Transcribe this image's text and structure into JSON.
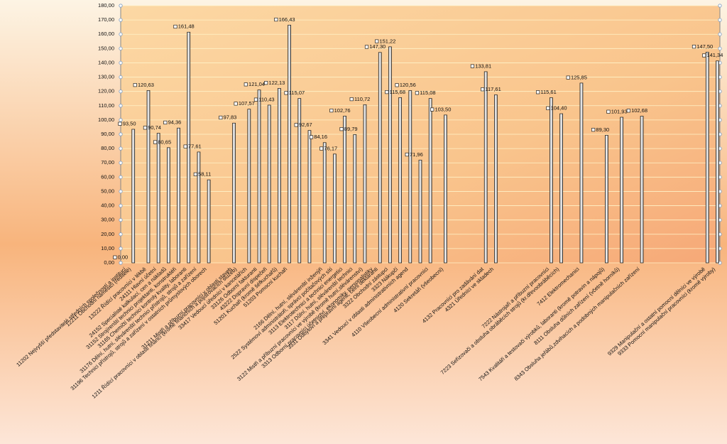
{
  "chart_data": {
    "type": "bar",
    "categories": [
      null,
      "11202 Nejvyšší představitelé středních společností a institucí",
      "12211 Obchodní náměstci (ředitelé)",
      null,
      null,
      "13222 Řídící pracovníci v lékbě",
      null,
      "24111 Hlavní účetní",
      null,
      "24152 Specialisté kalkulací, cen a nákladů",
      null,
      "31152 Strojírenští technici projektanti, konstruktéři",
      null,
      "31165 Chemičtí technici kontroly kvality, laboranti",
      null,
      "31176 Dělní, hutní, slévárenští technici přístrojů, strojů a zařízení",
      null,
      "31196 Technici přístrojů, strojů a zařízení v ostatních průmyslových oborech",
      null,
      null,
      null,
      null,
      "31211 Mistři a příbuzní pracovníci v oblasti staveb",
      "1211 Řídící pracovníci v oblasti financí (kromě finančních a pojišťovacích služeb)",
      null,
      "33417 Vedoucí úředníci v kancelářích",
      null,
      "33126 Odborní fakturanti",
      null,
      "43222 Dopravní dispečeři",
      null,
      "51201 Kuchaři (kromě šéfkuchařů)",
      null,
      "51203 Pomocní kuchaři",
      null,
      null,
      null,
      null,
      null,
      null,
      "2166 Dělní, hutní, slévárenští inženýři",
      null,
      "2522 Systémoví administrátoři, správci počítačových sítí",
      null,
      "3113 Elektrotechnici a technici energetici",
      null,
      "3117 Důlní, hutní, slévárenští technici",
      null,
      "3122 Mistři a příbuzní pracovníci ve výrobě (kromě hutní,slévárenství)",
      null,
      "3313 Odborní pracovníci účetnictví, ekonomiky, personalistiky",
      "3331 Odbytoví a přepravní agenti, celní deklaranti",
      null,
      "3322 Obchodní zástupci",
      null,
      "3323 Nákupčí",
      null,
      "3341 Vedoucí v oblasti administrativních agend",
      null,
      null,
      null,
      "4110 Všeobecní administrativní pracovníci",
      null,
      null,
      "4120 Sekretáři (všeobecní)",
      null,
      null,
      null,
      null,
      null,
      null,
      null,
      "4132 Pracovníci pro zadávání dat",
      null,
      "4321 Úředníci ve skladech",
      null,
      null,
      null,
      null,
      null,
      null,
      null,
      null,
      null,
      null,
      "7222 Nástrojaři a příbuzní pracovníci",
      null,
      "7223 Seřizovači a obsluha obráběcích strojů (kr.dřevoobráběcích)",
      null,
      null,
      null,
      "7412 Elektromechanici",
      null,
      null,
      null,
      null,
      "7543 Kvalitáři a testovači výrobků, laboranti (kromě potravin a nápojů)",
      null,
      null,
      "8111 Obsluha důlních zařízení (včetně horníků)",
      null,
      null,
      null,
      "8343 Obsluha jeřábů,zdvihacích a podobných manipulačních zařízení",
      null,
      null,
      null,
      null,
      null,
      null,
      null,
      null,
      null,
      null,
      null,
      null,
      "9329 Manipulační a ostatní pomocní dělníci ve výrobě",
      null,
      "9333 Pomocní manipulační pracovníci (kromě výroby)"
    ],
    "values": [
      null,
      0,
      93.5,
      null,
      null,
      120.63,
      null,
      90.74,
      null,
      80.65,
      null,
      94.36,
      null,
      161.48,
      null,
      77.61,
      null,
      58.11,
      null,
      null,
      null,
      null,
      97.83,
      null,
      null,
      107.57,
      null,
      121.04,
      null,
      110.43,
      null,
      122.13,
      null,
      166.43,
      null,
      115.07,
      null,
      92.67,
      null,
      null,
      84.16,
      null,
      76.17,
      null,
      102.76,
      null,
      89.79,
      null,
      110.72,
      null,
      null,
      147.3,
      null,
      151.22,
      null,
      115.68,
      null,
      120.56,
      null,
      71.96,
      null,
      115.08,
      null,
      null,
      103.5,
      null,
      null,
      null,
      null,
      null,
      null,
      null,
      133.81,
      null,
      117.61,
      null,
      null,
      null,
      null,
      null,
      null,
      null,
      null,
      null,
      null,
      115.61,
      null,
      104.4,
      null,
      null,
      null,
      125.85,
      null,
      null,
      null,
      null,
      89.3,
      null,
      null,
      101.93,
      null,
      null,
      null,
      102.68,
      null,
      null,
      null,
      null,
      null,
      null,
      null,
      null,
      null,
      null,
      null,
      null,
      147.5,
      null,
      141.34
    ],
    "value_labels": [
      null,
      "0,00",
      "93,50",
      null,
      null,
      "120,63",
      null,
      "90,74",
      null,
      "80,65",
      null,
      "94,36",
      null,
      "161,48",
      null,
      "77,61",
      null,
      "58,11",
      null,
      null,
      null,
      null,
      "97,83",
      null,
      null,
      "107,57",
      null,
      "121,04",
      null,
      "110,43",
      null,
      "122,13",
      null,
      "166,43",
      null,
      "115,07",
      null,
      "92,67",
      null,
      null,
      "84,16",
      null,
      "76,17",
      null,
      "102,76",
      null,
      "89,79",
      null,
      "110,72",
      null,
      null,
      "147,30",
      null,
      "151,22",
      null,
      "115,68",
      null,
      "120,56",
      null,
      "71,96",
      null,
      "115,08",
      null,
      null,
      "103,50",
      null,
      null,
      null,
      null,
      null,
      null,
      null,
      "133,81",
      null,
      "117,61",
      null,
      null,
      null,
      null,
      null,
      null,
      null,
      null,
      null,
      null,
      "115,61",
      null,
      "104,40",
      null,
      null,
      null,
      "125,85",
      null,
      null,
      null,
      null,
      "89,30",
      null,
      null,
      "101,93",
      null,
      null,
      null,
      "102,68",
      null,
      null,
      null,
      null,
      null,
      null,
      null,
      null,
      null,
      null,
      null,
      null,
      "147,50",
      null,
      "141,34"
    ],
    "color": "#e8e8e8",
    "ylim": [
      0,
      180
    ],
    "yticks": [
      {
        "value": 0,
        "label": "0,00"
      },
      {
        "value": 10,
        "label": "10,00"
      },
      {
        "value": 20,
        "label": "20,00"
      },
      {
        "value": 30,
        "label": "30,00"
      },
      {
        "value": 40,
        "label": "40,00"
      },
      {
        "value": 50,
        "label": "50,00"
      },
      {
        "value": 60,
        "label": "60,00"
      },
      {
        "value": 70,
        "label": "70,00"
      },
      {
        "value": 80,
        "label": "80,00"
      },
      {
        "value": 90,
        "label": "90,00"
      },
      {
        "value": 100,
        "label": "100,00"
      },
      {
        "value": 110,
        "label": "110,00"
      },
      {
        "value": 120,
        "label": "120,00"
      },
      {
        "value": 130,
        "label": "130,00"
      },
      {
        "value": 140,
        "label": "140,00"
      },
      {
        "value": 150,
        "label": "150,00"
      },
      {
        "value": 160,
        "label": "160,00"
      },
      {
        "value": 170,
        "label": "170,00"
      },
      {
        "value": 180,
        "label": "180,00"
      }
    ],
    "grid": true
  }
}
